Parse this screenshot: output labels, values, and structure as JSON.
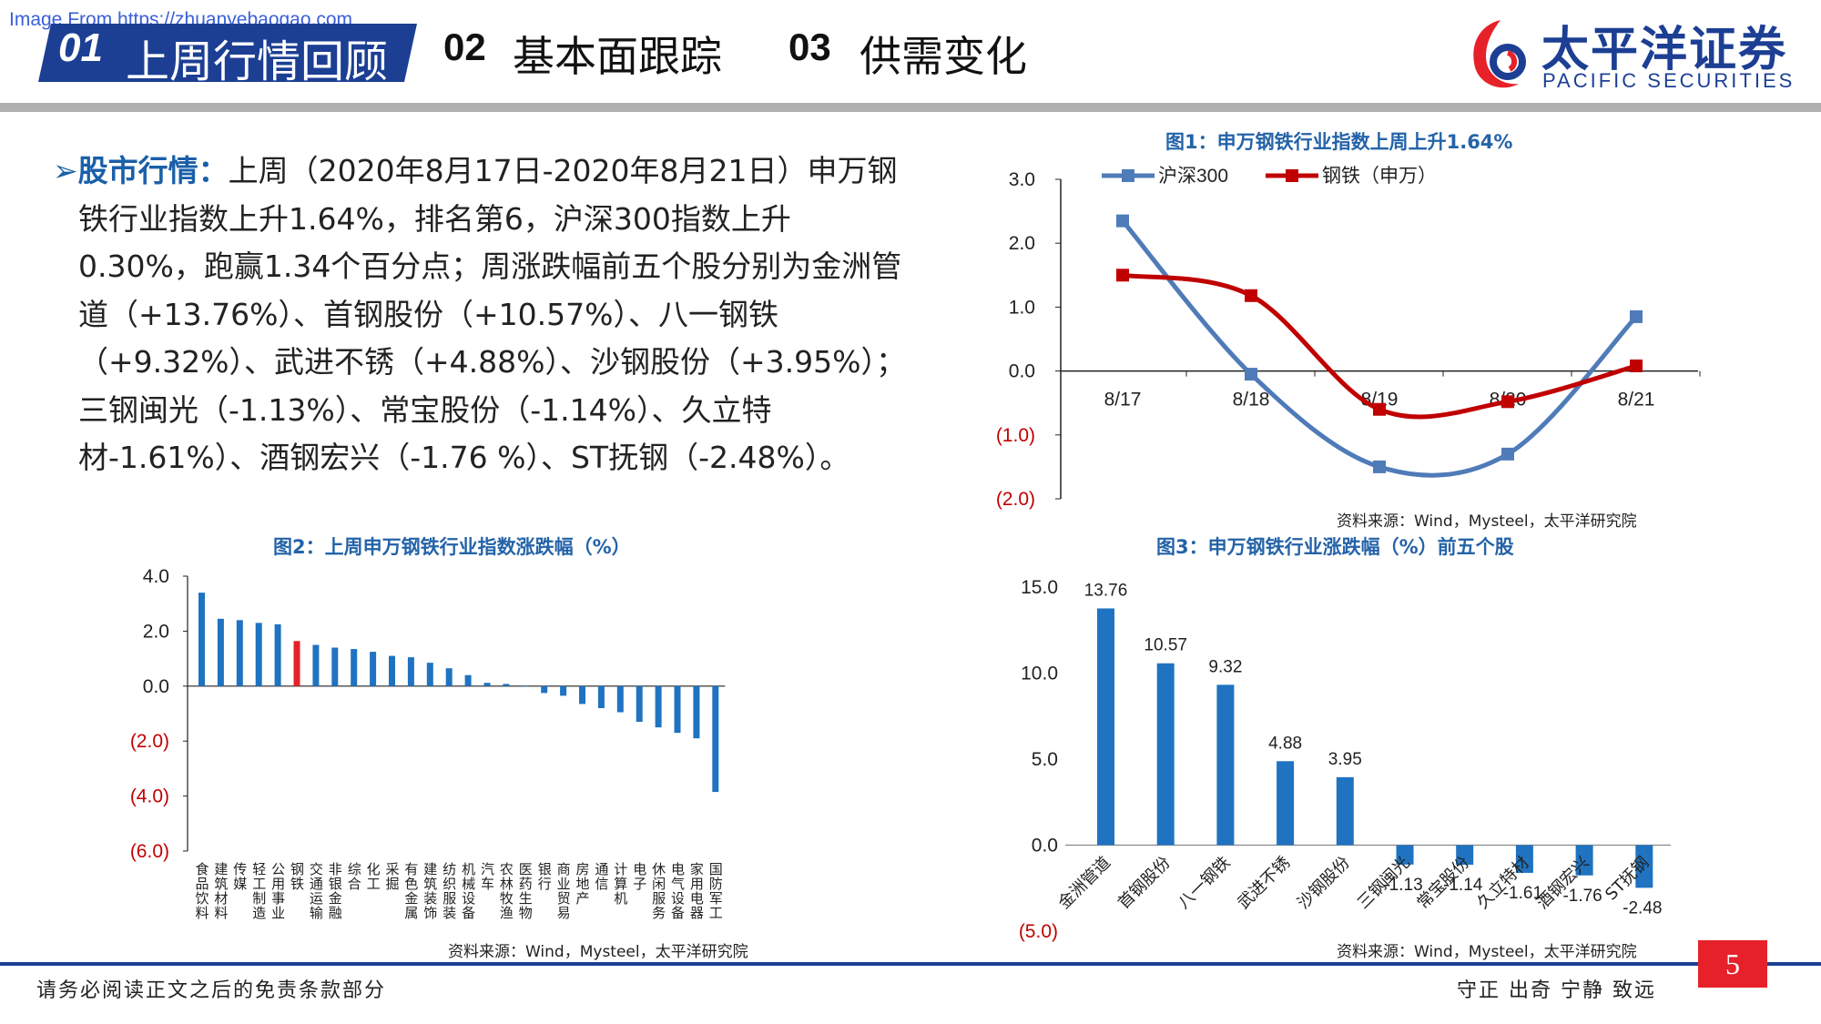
{
  "watermark": "Image From https://zhuanyebaogao.com",
  "nav": {
    "item1_num": "01",
    "item1_label": "上周行情回顾",
    "item2_num": "02",
    "item2_label": "基本面跟踪",
    "item3_num": "03",
    "item3_label": "供需变化"
  },
  "logo": {
    "name": "太平洋证券",
    "sub": "PACIFIC SECURITIES"
  },
  "colors": {
    "brand": "#1c3f94",
    "accent_red": "#e62129",
    "bar_blue": "#1f73c1",
    "line_blue": "#4f7bb8",
    "line_red": "#c00000"
  },
  "body": {
    "arrow": "➢",
    "head": "股市行情：",
    "text": "上周（2020年8月17日-2020年8月21日）申万钢铁行业指数上升1.64%，排名第6，沪深300指数上升0.30%，跑赢1.34个百分点；周涨跌幅前五个股分别为金洲管道（+13.76%）、首钢股份（+10.57%）、八一钢铁（+9.32%）、武进不锈（+4.88%）、沙钢股份（+3.95%）；三钢闽光（-1.13%）、常宝股份（-1.14%）、久立特材-1.61%）、酒钢宏兴（-1.76 %）、ST抚钢（-2.48%）。"
  },
  "chart_data": [
    {
      "type": "line",
      "title": "图1：申万钢铁行业指数上周上升1.64%",
      "categories": [
        "8/17",
        "8/18",
        "8/19",
        "8/20",
        "8/21"
      ],
      "series": [
        {
          "name": "沪深300",
          "values": [
            2.35,
            -0.05,
            -1.5,
            -1.3,
            0.85
          ]
        },
        {
          "name": "钢铁（申万）",
          "values": [
            1.5,
            1.18,
            -0.6,
            -0.48,
            0.08
          ]
        }
      ],
      "y_ticks": [
        "3.0",
        "2.0",
        "1.0",
        "0.0",
        "(1.0)",
        "(2.0)"
      ],
      "ylim": [
        -2,
        3
      ],
      "legend": "top",
      "source": "资料来源：Wind，Mysteel，太平洋研究院"
    },
    {
      "type": "bar",
      "title": "图2：上周申万钢铁行业指数涨跌幅（%）",
      "categories": [
        "食品饮料",
        "建筑材料",
        "传媒",
        "轻工制造",
        "公用事业",
        "钢铁",
        "交通运输",
        "非银金融",
        "综合",
        "化工",
        "采掘",
        "有色金属",
        "建筑装饰",
        "纺织服装",
        "机械设备",
        "汽车",
        "农林牧渔",
        "医药生物",
        "银行",
        "商业贸易",
        "房地产",
        "通信",
        "计算机",
        "电子",
        "休闲服务",
        "电气设备",
        "家用电器",
        "国防军工"
      ],
      "values": [
        3.4,
        2.45,
        2.4,
        2.3,
        2.25,
        1.64,
        1.5,
        1.4,
        1.35,
        1.25,
        1.1,
        1.05,
        0.85,
        0.65,
        0.4,
        0.12,
        0.08,
        0.0,
        -0.25,
        -0.35,
        -0.65,
        -0.8,
        -0.95,
        -1.3,
        -1.5,
        -1.7,
        -1.9,
        -3.85
      ],
      "highlight_index": 5,
      "y_ticks": [
        "4.0",
        "2.0",
        "0.0",
        "(2.0)",
        "(4.0)",
        "(6.0)"
      ],
      "ylim": [
        -6,
        4
      ],
      "source": "资料来源：Wind，Mysteel，太平洋研究院"
    },
    {
      "type": "bar",
      "title": "图3：申万钢铁行业涨跌幅（%）前五个股",
      "categories": [
        "金洲管道",
        "首钢股份",
        "八一钢铁",
        "武进不锈",
        "沙钢股份",
        "三钢闽光",
        "常宝股份",
        "久立特材",
        "酒钢宏兴",
        "ST抚钢"
      ],
      "values": [
        13.76,
        10.57,
        9.32,
        4.88,
        3.95,
        -1.13,
        -1.14,
        -1.61,
        -1.76,
        -2.48
      ],
      "value_labels": [
        "13.76",
        "10.57",
        "9.32",
        "4.88",
        "3.95",
        "-1.13",
        "-1.14",
        "-1.61",
        "-1.76",
        "-2.48"
      ],
      "y_ticks": [
        "15.0",
        "10.0",
        "5.0",
        "0.0",
        "(5.0)"
      ],
      "ylim": [
        -5,
        15
      ],
      "source": "资料来源：Wind，Mysteel，太平洋研究院"
    }
  ],
  "footer": {
    "left": "请务必阅读正文之后的免责条款部分",
    "right": "守正 出奇 宁静 致远",
    "page": "5"
  }
}
